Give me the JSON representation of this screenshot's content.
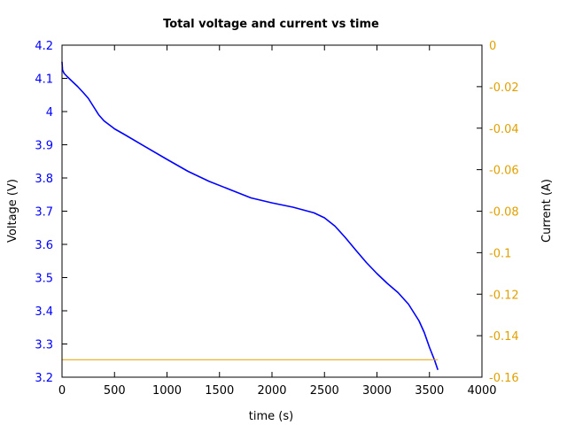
{
  "chart_data": {
    "type": "line",
    "title": "Total voltage and current vs time",
    "xlabel": "time (s)",
    "ylabel": "Voltage (V)",
    "y2label": "Current (A)",
    "xlim": [
      0,
      4000
    ],
    "ylim": [
      3.2,
      4.2
    ],
    "y2lim": [
      -0.16,
      0
    ],
    "x_ticks": [
      "0",
      "500",
      "1000",
      "1500",
      "2000",
      "2500",
      "3000",
      "3500",
      "4000"
    ],
    "y_ticks": [
      "3.2",
      "3.3",
      "3.4",
      "3.5",
      "3.6",
      "3.7",
      "3.8",
      "3.9",
      "4",
      "4.1",
      "4.2"
    ],
    "y2_ticks": [
      "-0.16",
      "-0.14",
      "-0.12",
      "-0.1",
      "-0.08",
      "-0.06",
      "-0.04",
      "-0.02",
      "0"
    ],
    "colors": {
      "voltage": "#0000ff",
      "current": "#e0a000",
      "axes": "#000000"
    },
    "series": [
      {
        "axis": "left",
        "x": [
          0,
          5,
          20,
          50,
          100,
          150,
          200,
          250,
          300,
          350,
          400,
          500,
          600,
          800,
          1000,
          1200,
          1400,
          1600,
          1800,
          2000,
          2200,
          2400,
          2500,
          2600,
          2700,
          2800,
          2900,
          3000,
          3100,
          3200,
          3300,
          3400,
          3450,
          3500,
          3550,
          3580
        ],
        "y": [
          4.15,
          4.125,
          4.115,
          4.105,
          4.09,
          4.075,
          4.058,
          4.04,
          4.015,
          3.99,
          3.972,
          3.948,
          3.93,
          3.893,
          3.856,
          3.82,
          3.79,
          3.765,
          3.74,
          3.725,
          3.712,
          3.695,
          3.68,
          3.655,
          3.62,
          3.582,
          3.545,
          3.512,
          3.482,
          3.455,
          3.42,
          3.37,
          3.335,
          3.29,
          3.25,
          3.222
        ]
      },
      {
        "axis": "right",
        "x": [
          0,
          3580
        ],
        "y": [
          -0.1516,
          -0.1516
        ]
      }
    ]
  }
}
